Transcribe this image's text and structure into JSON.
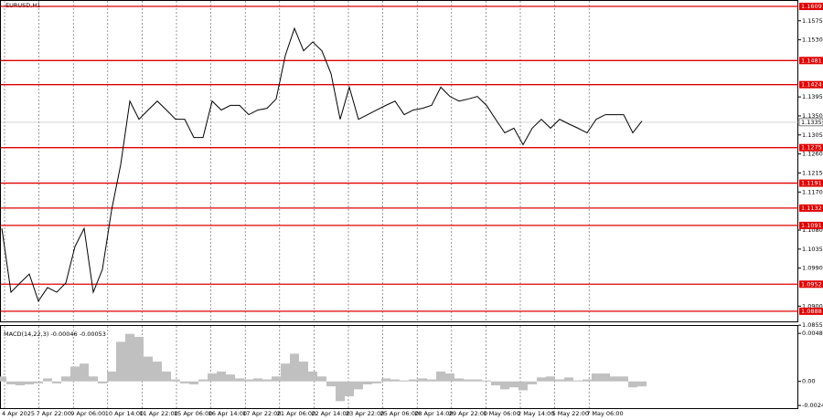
{
  "chart_data": {
    "type": "line",
    "title": "EURUSD,H1",
    "x_labels": [
      "4 Apr 2025",
      "7 Apr 22:00",
      "9 Apr 06:00",
      "10 Apr 14:00",
      "11 Apr 22:00",
      "15 Apr 06:00",
      "16 Apr 14:00",
      "17 Apr 22:00",
      "21 Apr 06:00",
      "22 Apr 14:00",
      "23 Apr 22:00",
      "25 Apr 06:00",
      "28 Apr 14:00",
      "29 Apr 22:00",
      "1 May 06:00",
      "2 May 14:00",
      "5 May 22:00",
      "7 May 06:00"
    ],
    "series": [
      {
        "name": "EURUSD",
        "color": "#000000",
        "values": [
          1.1084,
          1.0933,
          1.0955,
          1.0976,
          1.0912,
          1.0944,
          1.0933,
          1.0955,
          1.1041,
          1.1084,
          1.0933,
          1.0987,
          1.1127,
          1.1235,
          1.1385,
          1.1342,
          1.1364,
          1.1385,
          1.1364,
          1.1342,
          1.1342,
          1.1299,
          1.1299,
          1.1385,
          1.1364,
          1.1375,
          1.1375,
          1.1353,
          1.1364,
          1.1368,
          1.139,
          1.1493,
          1.1557,
          1.1504,
          1.1525,
          1.1504,
          1.145,
          1.1342,
          1.1418,
          1.1342,
          1.1353,
          1.1364,
          1.1375,
          1.1385,
          1.1353,
          1.1364,
          1.1368,
          1.1375,
          1.1418,
          1.1396,
          1.1385,
          1.139,
          1.1396,
          1.1375,
          1.1342,
          1.131,
          1.1321,
          1.1282,
          1.1321,
          1.1342,
          1.1321,
          1.1342,
          1.1331,
          1.1321,
          1.131,
          1.1342,
          1.1353,
          1.1353,
          1.1353,
          1.131,
          1.1338
        ]
      }
    ],
    "ylim": [
      1.0864,
      1.1622
    ],
    "yticks": [
      1.1575,
      {
        "value": 1.153,
        "label": "1.1530"
      },
      1.1395,
      {
        "value": 1.135,
        "label": "1.1350"
      },
      1.1305,
      {
        "value": 1.126,
        "label": "1.1260"
      },
      1.1215,
      {
        "value": 1.117,
        "label": "1.1170"
      },
      {
        "value": 1.108,
        "label": "1.1080"
      },
      1.1035,
      {
        "value": 1.099,
        "label": "1.0990"
      },
      {
        "value": 1.09,
        "label": "1.0900"
      },
      1.0855
    ],
    "levels": [
      1.1609,
      1.1481,
      1.1424,
      1.1275,
      1.1191,
      1.1132,
      1.1091,
      1.0952,
      1.0888
    ],
    "level_color": "#e00000",
    "current_price": 1.1335,
    "macd": {
      "title": "MACD(14,22,3) -0.00046 -0.00053",
      "color": "#c0c0c0",
      "values": [
        0.0005,
        -0.0003,
        -0.0004,
        -0.0003,
        -0.0002,
        0.0003,
        -0.0002,
        0.0005,
        0.0015,
        0.0018,
        0.0005,
        -0.0002,
        0.001,
        0.004,
        0.0048,
        0.0045,
        0.0025,
        0.002,
        0.001,
        0.0002,
        -0.0002,
        -0.0003,
        0.0002,
        0.0008,
        0.001,
        0.0007,
        0.0003,
        0.0002,
        0.0003,
        0.0002,
        0.0005,
        0.0018,
        0.0028,
        0.002,
        0.001,
        0.0005,
        -0.0005,
        -0.002,
        -0.0015,
        -0.0008,
        -0.0003,
        -0.0002,
        0.0003,
        0.0002,
        0.0001,
        0.0002,
        0.0003,
        0.0002,
        0.001,
        0.0008,
        0.0003,
        0.0002,
        0.0002,
        0.0001,
        -0.0004,
        -0.0008,
        -0.0006,
        -0.0009,
        -0.0003,
        0.0004,
        0.0005,
        0.0002,
        0.0004,
        0.0001,
        0.0002,
        0.0008,
        0.0008,
        0.0005,
        0.0005,
        -0.0006,
        -0.0005
      ],
      "ylim": [
        -0.0027,
        0.0056
      ],
      "yticks": [
        0.00485,
        {
          "value": 0,
          "label": "0.00"
        },
        -0.00243
      ]
    }
  }
}
